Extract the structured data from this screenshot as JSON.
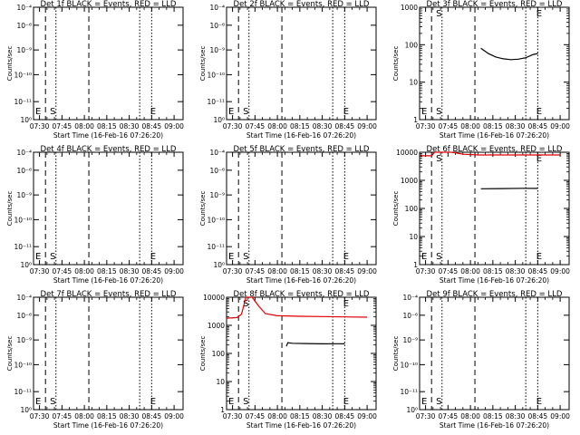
{
  "x_ticks": [
    "07:30",
    "07:45",
    "08:00",
    "08:15",
    "08:30",
    "08:45",
    "09:00"
  ],
  "y_ticks_log_small": [
    "10⁻⁴",
    "10⁻⁶",
    "10⁻⁹",
    "10⁻¹⁰",
    "10⁻¹¹",
    "10⁰"
  ],
  "y_ticks_counts": [
    "1000",
    "100",
    "10",
    "1"
  ],
  "y_ticks_counts_4dec": [
    "10000",
    "1000",
    "100",
    "10",
    "1"
  ],
  "chart_data": [
    {
      "type": "line",
      "title": "Det 1f BLACK = Events, RED = LLD",
      "xlabel": "Start Time (16-Feb-16 07:26:20)",
      "ylabel": "Counts/sec",
      "x_ticks": [
        "07:30",
        "07:45",
        "08:00",
        "08:15",
        "08:30",
        "08:45",
        "09:00"
      ],
      "y_tick_labels": [
        "10⁻⁴",
        "10⁻⁶",
        "10⁻⁹",
        "10⁻¹⁰",
        "10⁻¹¹",
        "10⁰"
      ],
      "markers": [
        {
          "label": "S",
          "time": "07:37"
        },
        {
          "label": "E",
          "time": "08:44"
        }
      ],
      "series": []
    },
    {
      "type": "line",
      "title": "Det 2f BLACK = Events, RED = LLD",
      "xlabel": "Start Time (16-Feb-16 07:26:20)",
      "ylabel": "Counts/sec",
      "x_ticks": [
        "07:30",
        "07:45",
        "08:00",
        "08:15",
        "08:30",
        "08:45",
        "09:00"
      ],
      "y_tick_labels": [
        "10⁻⁴",
        "10⁻⁶",
        "10⁻⁹",
        "10⁻¹⁰",
        "10⁻¹¹",
        "10⁰"
      ],
      "markers": [
        {
          "label": "S",
          "time": "07:37"
        },
        {
          "label": "E",
          "time": "08:44"
        }
      ],
      "series": []
    },
    {
      "type": "line",
      "title": "Det 3f BLACK = Events, RED = LLD",
      "xlabel": "Start Time (16-Feb-16 07:26:20)",
      "ylabel": "Counts/sec",
      "x_ticks": [
        "07:30",
        "07:45",
        "08:00",
        "08:15",
        "08:30",
        "08:45",
        "09:00"
      ],
      "y_tick_labels": [
        "1000",
        "100",
        "10",
        "1"
      ],
      "markers": [
        {
          "label": "S",
          "time": "07:37"
        },
        {
          "label": "E",
          "time": "08:44"
        }
      ],
      "series": [
        {
          "color": "#000000",
          "x": [
            "08:07",
            "08:12",
            "08:17",
            "08:22",
            "08:27",
            "08:32",
            "08:37",
            "08:42",
            "08:45"
          ],
          "y": [
            80,
            58,
            47,
            42,
            40,
            41,
            45,
            55,
            58
          ]
        }
      ]
    },
    {
      "type": "line",
      "title": "Det 4f BLACK = Events, RED = LLD",
      "xlabel": "Start Time (16-Feb-16 07:26:20)",
      "ylabel": "Counts/sec",
      "x_ticks": [
        "07:30",
        "07:45",
        "08:00",
        "08:15",
        "08:30",
        "08:45",
        "09:00"
      ],
      "y_tick_labels": [
        "10⁻⁴",
        "10⁻⁶",
        "10⁻⁹",
        "10⁻¹⁰",
        "10⁻¹¹",
        "10⁰"
      ],
      "markers": [
        {
          "label": "S",
          "time": "07:37"
        },
        {
          "label": "E",
          "time": "08:44"
        }
      ],
      "series": []
    },
    {
      "type": "line",
      "title": "Det 5f BLACK = Events, RED = LLD",
      "xlabel": "Start Time (16-Feb-16 07:26:20)",
      "ylabel": "Counts/sec",
      "x_ticks": [
        "07:30",
        "07:45",
        "08:00",
        "08:15",
        "08:30",
        "08:45",
        "09:00"
      ],
      "y_tick_labels": [
        "10⁻⁴",
        "10⁻⁶",
        "10⁻⁹",
        "10⁻¹⁰",
        "10⁻¹¹",
        "10⁰"
      ],
      "markers": [
        {
          "label": "S",
          "time": "07:37"
        },
        {
          "label": "E",
          "time": "08:44"
        }
      ],
      "series": []
    },
    {
      "type": "line",
      "title": "Det 6f BLACK = Events, RED = LLD",
      "xlabel": "Start Time (16-Feb-16 07:26:20)",
      "ylabel": "Counts/sec",
      "x_ticks": [
        "07:30",
        "07:45",
        "08:00",
        "08:15",
        "08:30",
        "08:45",
        "09:00"
      ],
      "y_tick_labels": [
        "10000",
        "1000",
        "100",
        "10",
        "1"
      ],
      "markers": [
        {
          "label": "S",
          "time": "07:37"
        },
        {
          "label": "E",
          "time": "08:44"
        }
      ],
      "series": [
        {
          "color": "#e00000",
          "x": [
            "07:26",
            "07:34",
            "07:36",
            "07:42",
            "07:47",
            "07:50",
            "07:55",
            "08:05",
            "08:20",
            "08:35",
            "08:50",
            "09:00"
          ],
          "y": [
            7500,
            7500,
            13000,
            13000,
            11500,
            9500,
            8500,
            8000,
            8000,
            8000,
            8000,
            8000
          ]
        },
        {
          "color": "#000000",
          "x": [
            "08:07",
            "08:20",
            "08:35",
            "08:45"
          ],
          "y": [
            500,
            510,
            520,
            515
          ]
        }
      ]
    },
    {
      "type": "line",
      "title": "Det 7f BLACK = Events, RED = LLD",
      "xlabel": "Start Time (16-Feb-16 07:26:20)",
      "ylabel": "Counts/sec",
      "x_ticks": [
        "07:30",
        "07:45",
        "08:00",
        "08:15",
        "08:30",
        "08:45",
        "09:00"
      ],
      "y_tick_labels": [
        "10⁻⁴",
        "10⁻⁶",
        "10⁻⁹",
        "10⁻¹⁰",
        "10⁻¹¹",
        "10⁰"
      ],
      "markers": [
        {
          "label": "S",
          "time": "07:37"
        },
        {
          "label": "E",
          "time": "08:44"
        }
      ],
      "series": []
    },
    {
      "type": "line",
      "title": "Det 8f BLACK = Events, RED = LLD",
      "xlabel": "Start Time (16-Feb-16 07:26:20)",
      "ylabel": "Counts/sec",
      "x_ticks": [
        "07:30",
        "07:45",
        "08:00",
        "08:15",
        "08:30",
        "08:45",
        "09:00"
      ],
      "y_tick_labels": [
        "10000",
        "1000",
        "100",
        "10",
        "1"
      ],
      "markers": [
        {
          "label": "S",
          "time": "07:37"
        },
        {
          "label": "E",
          "time": "08:44"
        }
      ],
      "series": [
        {
          "color": "#e00000",
          "x": [
            "07:26",
            "07:33",
            "07:36",
            "07:39",
            "07:43",
            "07:48",
            "07:52",
            "08:00",
            "08:15",
            "08:30",
            "08:45",
            "09:00"
          ],
          "y": [
            1800,
            1900,
            2500,
            12000,
            12000,
            4500,
            2600,
            2200,
            2100,
            2050,
            2000,
            1950
          ]
        },
        {
          "color": "#000000",
          "x": [
            "08:06",
            "08:07",
            "08:10",
            "08:20",
            "08:30",
            "08:40",
            "08:45"
          ],
          "y": [
            180,
            240,
            230,
            225,
            220,
            222,
            220
          ]
        }
      ]
    },
    {
      "type": "line",
      "title": "Det 9f BLACK = Events, RED = LLD",
      "xlabel": "Start Time (16-Feb-16 07:26:20)",
      "ylabel": "Counts/sec",
      "x_ticks": [
        "07:30",
        "07:45",
        "08:00",
        "08:15",
        "08:30",
        "08:45",
        "09:00"
      ],
      "y_tick_labels": [
        "10⁻⁴",
        "10⁻⁶",
        "10⁻⁹",
        "10⁻¹⁰",
        "10⁻¹¹",
        "10⁰"
      ],
      "markers": [
        {
          "label": "S",
          "time": "07:37"
        },
        {
          "label": "E",
          "time": "08:44"
        }
      ],
      "series": []
    }
  ]
}
